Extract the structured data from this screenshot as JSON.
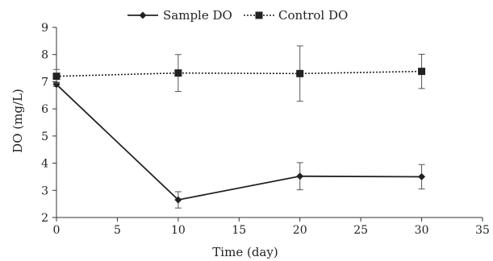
{
  "chart_data": {
    "type": "line",
    "title": "",
    "xlabel": "Time (day)",
    "ylabel": "DO (mg/L)",
    "xlim": [
      0,
      35
    ],
    "ylim": [
      2,
      9
    ],
    "xticks": [
      "0",
      "5",
      "10",
      "15",
      "20",
      "25",
      "30",
      "35"
    ],
    "yticks": [
      "2",
      "3",
      "4",
      "5",
      "6",
      "7",
      "8",
      "9"
    ],
    "grid": false,
    "legend_position": "top",
    "series": [
      {
        "name": "Sample DO",
        "line_style": "solid",
        "marker": "diamond",
        "color": "#222222",
        "x": [
          0,
          10,
          20,
          30
        ],
        "y": [
          6.9,
          2.65,
          3.52,
          3.5
        ],
        "error": [
          0.08,
          0.3,
          0.5,
          0.45
        ]
      },
      {
        "name": "Control DO",
        "line_style": "dotted",
        "marker": "square",
        "color": "#222222",
        "x": [
          0,
          10,
          20,
          30
        ],
        "y": [
          7.2,
          7.32,
          7.3,
          7.38
        ],
        "error": [
          0.25,
          0.68,
          1.02,
          0.63
        ]
      }
    ]
  }
}
